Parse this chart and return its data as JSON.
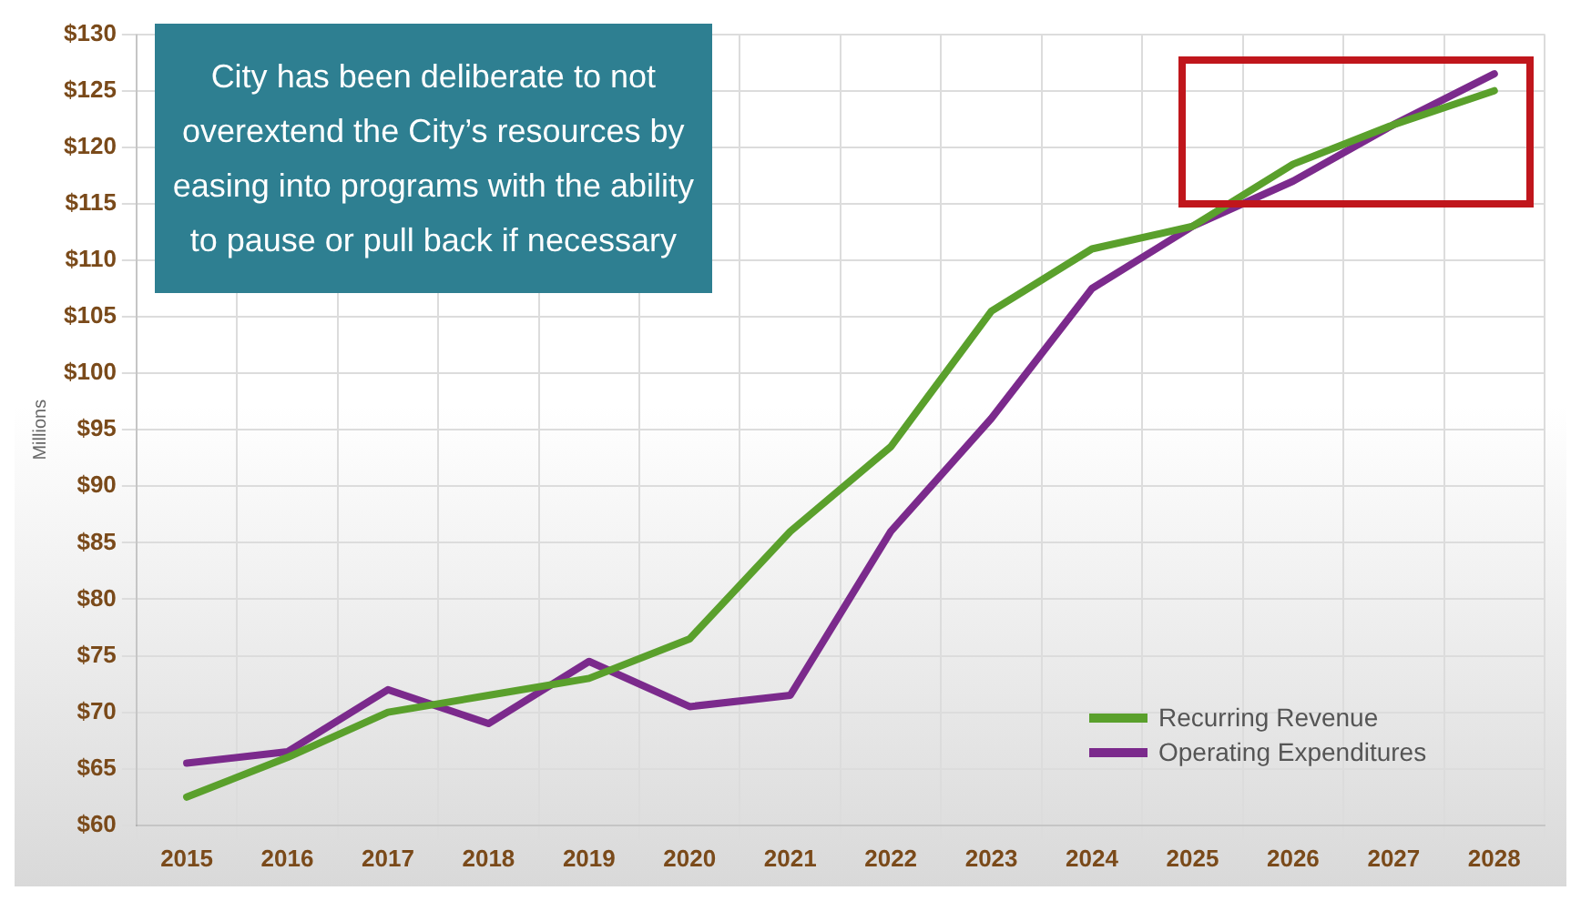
{
  "chart_data": {
    "type": "line",
    "ylabel": "Millions",
    "annotations": [
      "City has been deliberate to not overextend the City’s resources by easing into programs with the ability to pause or pull back if necessary"
    ],
    "categories": [
      "2015",
      "2016",
      "2017",
      "2018",
      "2019",
      "2020",
      "2021",
      "2022",
      "2023",
      "2024",
      "2025",
      "2026",
      "2027",
      "2028"
    ],
    "series": [
      {
        "name": "Recurring Revenue",
        "color": "#5aa02c",
        "values": [
          62.5,
          66,
          70,
          71.5,
          73,
          76.5,
          86,
          93.5,
          105.5,
          111,
          113,
          118.5,
          122,
          125
        ]
      },
      {
        "name": "Operating Expenditures",
        "color": "#7b2a8c",
        "values": [
          65.5,
          66.5,
          72,
          69,
          74.5,
          70.5,
          71.5,
          86,
          96,
          107.5,
          113,
          117,
          122,
          126.5
        ]
      }
    ],
    "ylim": [
      60,
      130
    ],
    "yticks": [
      {
        "value": 60,
        "label": "$60"
      },
      {
        "value": 65,
        "label": "$65"
      },
      {
        "value": 70,
        "label": "$70"
      },
      {
        "value": 75,
        "label": "$75"
      },
      {
        "value": 80,
        "label": "$80"
      },
      {
        "value": 85,
        "label": "$85"
      },
      {
        "value": 90,
        "label": "$90"
      },
      {
        "value": 95,
        "label": "$95"
      },
      {
        "value": 100,
        "label": "$100"
      },
      {
        "value": 105,
        "label": "$105"
      },
      {
        "value": 110,
        "label": "$110"
      },
      {
        "value": 115,
        "label": "$115"
      },
      {
        "value": 120,
        "label": "$120"
      },
      {
        "value": 125,
        "label": "$125"
      },
      {
        "value": 130,
        "label": "$130"
      }
    ],
    "grid": true,
    "legend": "bottom right",
    "marker": "none",
    "line_style": "solid"
  }
}
